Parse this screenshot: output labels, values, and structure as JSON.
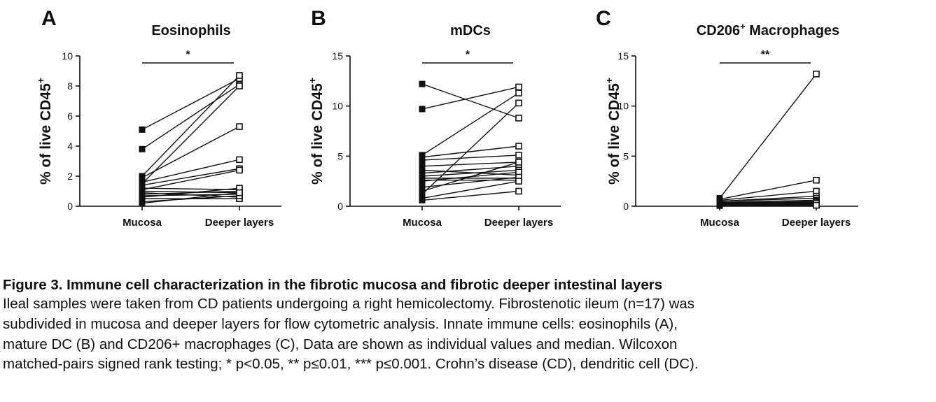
{
  "chart_data": [
    {
      "type": "line",
      "panel_letter": "A",
      "title": "Eosinophils",
      "title_sup": "",
      "ylabel": "% of live CD45",
      "ylabel_sup": "+",
      "ylim": [
        0,
        10
      ],
      "yticks": [
        "0",
        "2",
        "4",
        "6",
        "8",
        "10"
      ],
      "categories": [
        "Mucosa",
        "Deeper layers"
      ],
      "significance": "*",
      "pairs": [
        [
          5.1,
          8.5
        ],
        [
          3.8,
          8.1
        ],
        [
          2.0,
          8.7
        ],
        [
          1.9,
          5.3
        ],
        [
          1.6,
          3.1
        ],
        [
          1.5,
          8.0
        ],
        [
          1.4,
          2.5
        ],
        [
          1.2,
          1.1
        ],
        [
          1.1,
          2.4
        ],
        [
          1.0,
          0.9
        ],
        [
          0.9,
          0.6
        ],
        [
          0.8,
          1.0
        ],
        [
          0.7,
          0.8
        ],
        [
          0.6,
          1.2
        ],
        [
          0.5,
          0.5
        ],
        [
          0.3,
          0.7
        ],
        [
          0.2,
          0.9
        ]
      ]
    },
    {
      "type": "line",
      "panel_letter": "B",
      "title": "mDCs",
      "title_sup": "",
      "ylabel": "% of live CD45",
      "ylabel_sup": "+",
      "ylim": [
        0,
        15
      ],
      "yticks": [
        "0",
        "5",
        "10",
        "15"
      ],
      "categories": [
        "Mucosa",
        "Deeper layers"
      ],
      "significance": "*",
      "pairs": [
        [
          12.2,
          8.8
        ],
        [
          9.7,
          11.9
        ],
        [
          5.1,
          11.3
        ],
        [
          4.9,
          6.0
        ],
        [
          4.6,
          5.1
        ],
        [
          4.0,
          4.4
        ],
        [
          3.6,
          3.1
        ],
        [
          3.3,
          4.0
        ],
        [
          3.0,
          3.6
        ],
        [
          2.8,
          2.8
        ],
        [
          2.6,
          2.6
        ],
        [
          2.5,
          3.4
        ],
        [
          1.9,
          2.9
        ],
        [
          1.5,
          4.4
        ],
        [
          1.2,
          10.3
        ],
        [
          0.8,
          2.5
        ],
        [
          0.6,
          1.5
        ]
      ]
    },
    {
      "type": "line",
      "panel_letter": "C",
      "title": "CD206",
      "title_sup": "+",
      "title_rest": " Macrophages",
      "ylabel": "% of live CD45",
      "ylabel_sup": "+",
      "ylim": [
        0,
        15
      ],
      "yticks": [
        "0",
        "5",
        "10",
        "15"
      ],
      "categories": [
        "Mucosa",
        "Deeper layers"
      ],
      "significance": "**",
      "pairs": [
        [
          0.8,
          13.2
        ],
        [
          0.7,
          2.6
        ],
        [
          0.6,
          1.5
        ],
        [
          0.5,
          1.0
        ],
        [
          0.5,
          0.8
        ],
        [
          0.4,
          0.6
        ],
        [
          0.4,
          0.4
        ],
        [
          0.3,
          0.5
        ],
        [
          0.3,
          0.3
        ],
        [
          0.3,
          0.2
        ],
        [
          0.2,
          0.4
        ],
        [
          0.2,
          0.3
        ],
        [
          0.2,
          0.2
        ],
        [
          0.1,
          0.2
        ],
        [
          0.1,
          0.1
        ],
        [
          0.1,
          0.3
        ],
        [
          0.05,
          0.1
        ]
      ]
    }
  ],
  "caption": {
    "title": "Figure 3. Immune cell characterization in the fibrotic mucosa and fibrotic deeper intestinal layers",
    "lines": [
      "Ileal samples were taken from CD patients undergoing a right hemicolectomy. Fibrostenotic ileum (n=17) was",
      "subdivided in mucosa and deeper layers for flow cytometric analysis. Innate immune cells: eosinophils (A),",
      "mature DC (B) and CD206+ macrophages (C), Data are shown as individual values and median. Wilcoxon",
      "matched-pairs signed rank testing; * p<0.05, ** p≤0.01, *** p≤0.001. Crohn’s disease (CD), dendritic cell (DC)."
    ]
  }
}
